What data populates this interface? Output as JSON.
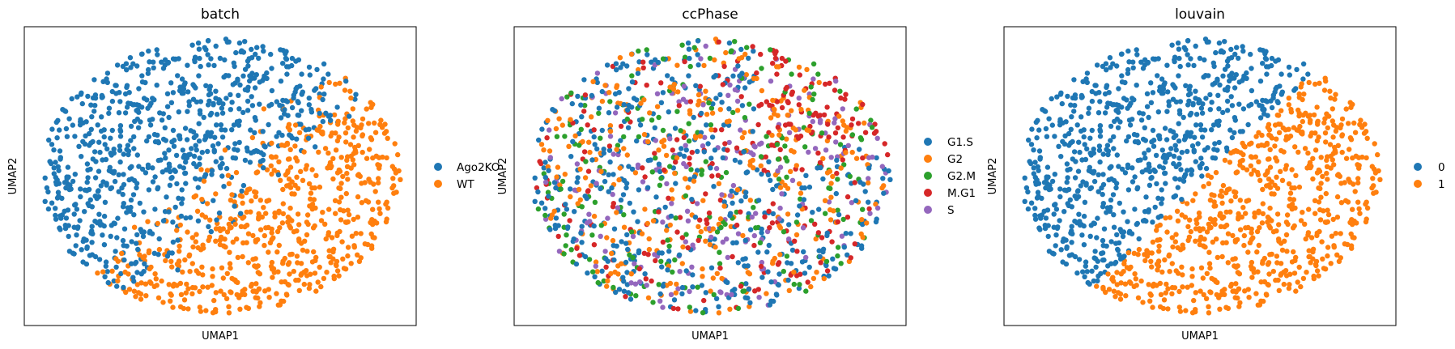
{
  "chart_data": [
    {
      "type": "scatter",
      "title": "batch",
      "xlabel": "UMAP1",
      "ylabel": "UMAP2",
      "grid": false,
      "legend": "right",
      "series": [
        {
          "name": "Ago2KO",
          "color": "#1f77b4"
        },
        {
          "name": "WT",
          "color": "#ff7f0e"
        }
      ]
    },
    {
      "type": "scatter",
      "title": "ccPhase",
      "xlabel": "UMAP1",
      "ylabel": "UMAP2",
      "grid": false,
      "legend": "right",
      "series": [
        {
          "name": "G1.S",
          "color": "#1f77b4"
        },
        {
          "name": "G2",
          "color": "#ff7f0e"
        },
        {
          "name": "G2.M",
          "color": "#2ca02c"
        },
        {
          "name": "M.G1",
          "color": "#d62728"
        },
        {
          "name": "S",
          "color": "#9467bd"
        }
      ]
    },
    {
      "type": "scatter",
      "title": "louvain",
      "xlabel": "UMAP1",
      "ylabel": "UMAP2",
      "grid": false,
      "legend": "right",
      "series": [
        {
          "name": "0",
          "color": "#1f77b4"
        },
        {
          "name": "1",
          "color": "#ff7f0e"
        }
      ]
    }
  ]
}
